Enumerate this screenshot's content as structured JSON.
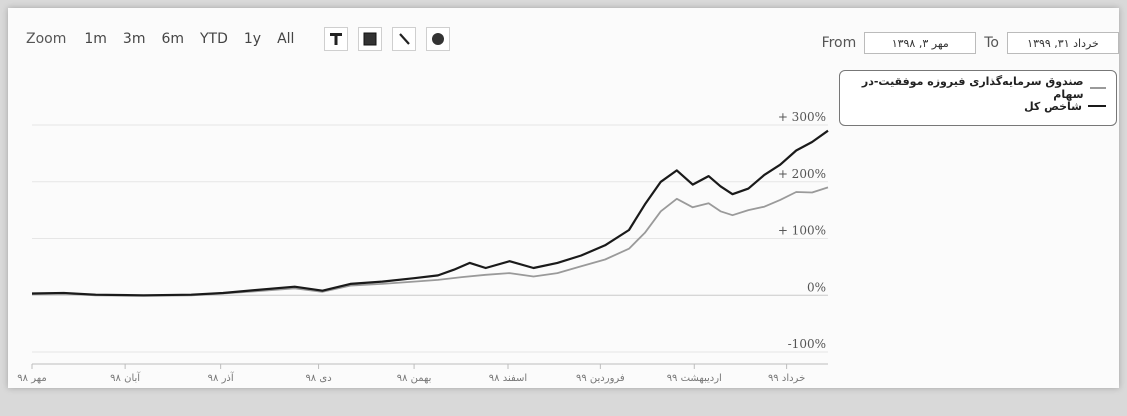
{
  "toolbar": {
    "zoom_label": "Zoom",
    "zoom_options": [
      "1m",
      "3m",
      "6m",
      "YTD",
      "1y",
      "All"
    ],
    "tools": [
      "text-tool-icon",
      "square-tool-icon",
      "line-tool-icon",
      "circle-tool-icon"
    ]
  },
  "range": {
    "from_label": "From",
    "from_value": "مهر ۳, ۱۳۹۸",
    "to_label": "To",
    "to_value": "خرداد ۳۱, ۱۳۹۹"
  },
  "legend": {
    "items": [
      {
        "label": "صندوق سرمایه‌گذاری فیروزه موفقیت-در سهام",
        "color": "#9a9a9a"
      },
      {
        "label": "شاخص کل",
        "color": "#1a1a1a"
      }
    ]
  },
  "chart_data": {
    "type": "line",
    "y_unit": "%",
    "y_ticks": [
      "+ 300%",
      "+ 200%",
      "+ 100%",
      "0%",
      "-100%"
    ],
    "ylim": [
      -100,
      300
    ],
    "x_tick_labels": [
      "مهر ۹۸",
      "آبان ۹۸",
      "آذر ۹۸",
      "دی ۹۸",
      "بهمن ۹۸",
      "اسفند ۹۸",
      "فروردین ۹۹",
      "اردیبهشت ۹۹",
      "خرداد ۹۹"
    ],
    "x_range": [
      0,
      100
    ],
    "x_tick_positions": [
      0,
      11.7,
      23.7,
      36,
      48,
      59.8,
      71.4,
      83.2,
      94.8
    ],
    "grid": true,
    "series": [
      {
        "name": "صندوق سرمایه‌گذاری فیروزه موفقیت-در سهام",
        "color": "#9a9a9a",
        "x": [
          0,
          4,
          8,
          14,
          20,
          24,
          28,
          33,
          36.5,
          40,
          44,
          48,
          51,
          54,
          57,
          60,
          63,
          66,
          69,
          72,
          75,
          77,
          79,
          81,
          83,
          85,
          86.5,
          88,
          90,
          92,
          94,
          96,
          98,
          100
        ],
        "y": [
          2,
          3,
          0,
          -1,
          0,
          3,
          7,
          12,
          6,
          17,
          20,
          24,
          27,
          32,
          36,
          39,
          33,
          39,
          51,
          63,
          82,
          110,
          148,
          170,
          155,
          162,
          148,
          141,
          150,
          156,
          168,
          182,
          181,
          190
        ]
      },
      {
        "name": "شاخص کل",
        "color": "#1a1a1a",
        "x": [
          0,
          4,
          8,
          14,
          20,
          24,
          28,
          33,
          36.5,
          40,
          44,
          48,
          51,
          53,
          55,
          57,
          60,
          63,
          66,
          69,
          72,
          75,
          77,
          79,
          81,
          83,
          85,
          86.5,
          88,
          90,
          92,
          94,
          96,
          98,
          100
        ],
        "y": [
          3,
          4,
          1,
          0,
          1,
          4,
          9,
          15,
          8,
          20,
          24,
          30,
          35,
          45,
          57,
          48,
          60,
          48,
          57,
          70,
          88,
          115,
          160,
          200,
          220,
          195,
          210,
          192,
          178,
          188,
          212,
          230,
          255,
          270,
          290
        ]
      }
    ]
  }
}
